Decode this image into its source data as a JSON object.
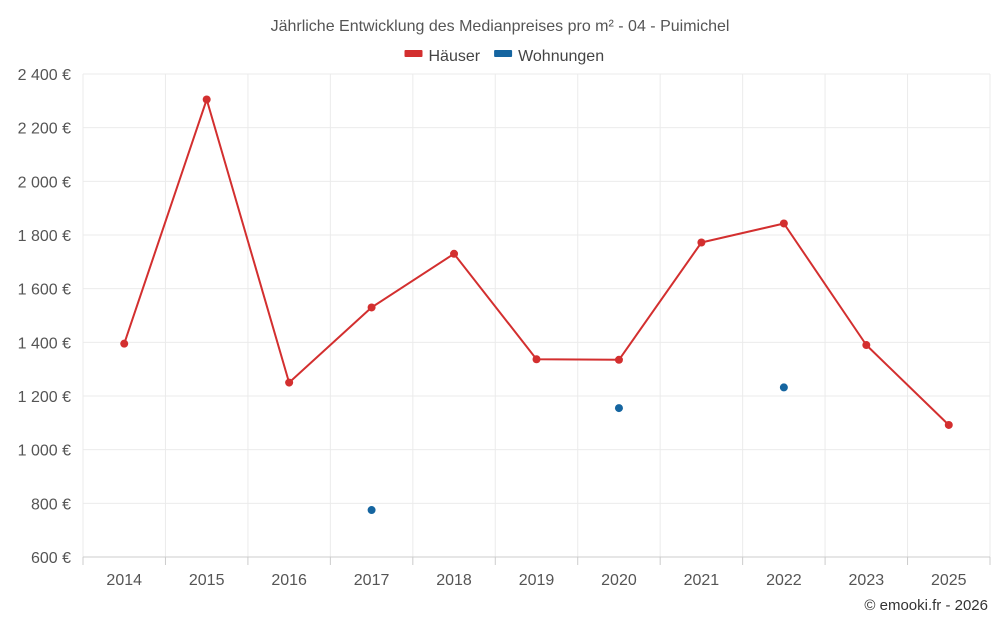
{
  "chart_data": {
    "type": "line",
    "title": "Jährliche Entwicklung des Medianpreises pro m² - 04 - Puimichel",
    "xlabel": "",
    "ylabel": "",
    "categories": [
      "2014",
      "2015",
      "2016",
      "2017",
      "2018",
      "2019",
      "2020",
      "2021",
      "2022",
      "2023",
      "2025"
    ],
    "ylim": [
      600,
      2400
    ],
    "y_ticks": [
      600,
      800,
      1000,
      1200,
      1400,
      1600,
      1800,
      2000,
      2200,
      2400
    ],
    "y_tick_labels": [
      "600 €",
      "800 €",
      "1 000 €",
      "1 200 €",
      "1 400 €",
      "1 600 €",
      "1 800 €",
      "2 000 €",
      "2 200 €",
      "2 400 €"
    ],
    "grid": true,
    "legend_position": "top-center",
    "series": [
      {
        "name": "Häuser",
        "color": "#d32f2f",
        "style": "line",
        "values": [
          1395,
          2305,
          1250,
          1530,
          1730,
          1337,
          1335,
          1772,
          1843,
          1390,
          1092
        ]
      },
      {
        "name": "Wohnungen",
        "color": "#1565a0",
        "style": "points",
        "values": [
          null,
          null,
          null,
          775,
          null,
          null,
          1155,
          null,
          1232,
          null,
          null
        ]
      }
    ]
  },
  "credit": "© emooki.fr - 2026"
}
